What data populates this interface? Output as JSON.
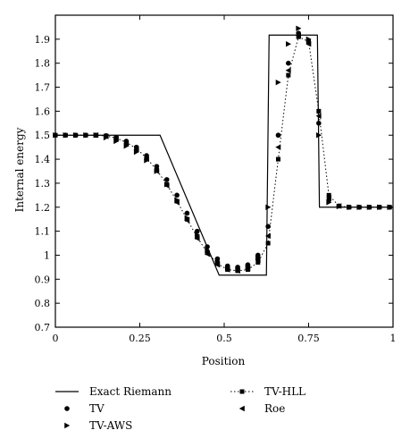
{
  "chart_data": {
    "type": "line",
    "title": "",
    "xlabel": "Position",
    "ylabel": "Internal energy",
    "xlim": [
      0,
      1
    ],
    "ylim": [
      0.7,
      2.0
    ],
    "grid": false,
    "legend_position": "below plot",
    "x_ticks": [
      {
        "value": 0,
        "label": "0"
      },
      {
        "value": 0.25,
        "label": "0.25"
      },
      {
        "value": 0.5,
        "label": "0.5"
      },
      {
        "value": 0.75,
        "label": "0.75"
      },
      {
        "value": 1,
        "label": "1"
      }
    ],
    "y_ticks": [
      {
        "value": 0.7,
        "label": "0.7"
      },
      {
        "value": 0.8,
        "label": "0.8"
      },
      {
        "value": 0.9,
        "label": "0.9"
      },
      {
        "value": 1.0,
        "label": "1"
      },
      {
        "value": 1.1,
        "label": "1.1"
      },
      {
        "value": 1.2,
        "label": "1.2"
      },
      {
        "value": 1.3,
        "label": "1.3"
      },
      {
        "value": 1.4,
        "label": "1.4"
      },
      {
        "value": 1.5,
        "label": "1.5"
      },
      {
        "value": 1.6,
        "label": "1.6"
      },
      {
        "value": 1.7,
        "label": "1.7"
      },
      {
        "value": 1.8,
        "label": "1.8"
      },
      {
        "value": 1.9,
        "label": "1.9"
      }
    ],
    "series": [
      {
        "name": "Exact Riemann",
        "style": "solid-line",
        "x": [
          0,
          0.31,
          0.485,
          0.625,
          0.633,
          0.776,
          0.782,
          1.0
        ],
        "y": [
          1.5,
          1.5,
          0.917,
          0.917,
          1.917,
          1.917,
          1.2,
          1.2
        ]
      },
      {
        "name": "TV",
        "style": "circle-marker",
        "x": [
          0,
          0.03,
          0.06,
          0.09,
          0.12,
          0.15,
          0.18,
          0.21,
          0.24,
          0.27,
          0.3,
          0.33,
          0.36,
          0.39,
          0.42,
          0.45,
          0.48,
          0.51,
          0.54,
          0.57,
          0.6,
          0.63,
          0.66,
          0.69,
          0.72,
          0.75,
          0.78,
          0.81,
          0.84,
          0.87,
          0.9,
          0.93,
          0.96,
          0.99
        ],
        "y": [
          1.5,
          1.5,
          1.5,
          1.5,
          1.5,
          1.498,
          1.49,
          1.475,
          1.45,
          1.415,
          1.37,
          1.315,
          1.25,
          1.175,
          1.1,
          1.035,
          0.985,
          0.955,
          0.95,
          0.96,
          1.0,
          1.12,
          1.5,
          1.8,
          1.925,
          1.885,
          1.55,
          1.23,
          1.205,
          1.2,
          1.2,
          1.2,
          1.2,
          1.2
        ]
      },
      {
        "name": "TV-HLL",
        "style": "square-dotted",
        "x": [
          0,
          0.03,
          0.06,
          0.09,
          0.12,
          0.15,
          0.18,
          0.21,
          0.24,
          0.27,
          0.3,
          0.33,
          0.36,
          0.39,
          0.42,
          0.45,
          0.48,
          0.51,
          0.54,
          0.57,
          0.6,
          0.63,
          0.66,
          0.69,
          0.72,
          0.75,
          0.78,
          0.81,
          0.84,
          0.87,
          0.9,
          0.93,
          0.96,
          0.99
        ],
        "y": [
          1.5,
          1.5,
          1.5,
          1.5,
          1.5,
          1.497,
          1.488,
          1.47,
          1.445,
          1.405,
          1.355,
          1.295,
          1.225,
          1.15,
          1.075,
          1.01,
          0.965,
          0.94,
          0.935,
          0.94,
          0.97,
          1.05,
          1.4,
          1.75,
          1.91,
          1.89,
          1.6,
          1.25,
          1.205,
          1.2,
          1.2,
          1.2,
          1.2,
          1.2
        ]
      },
      {
        "name": "TV-AWS",
        "style": "triangle-right-marker",
        "x": [
          0,
          0.03,
          0.06,
          0.09,
          0.12,
          0.15,
          0.18,
          0.21,
          0.24,
          0.27,
          0.3,
          0.33,
          0.36,
          0.39,
          0.42,
          0.45,
          0.48,
          0.51,
          0.54,
          0.57,
          0.6,
          0.63,
          0.66,
          0.69,
          0.72,
          0.75,
          0.78,
          0.81,
          0.84,
          0.87,
          0.9,
          0.93,
          0.96,
          0.99
        ],
        "y": [
          1.5,
          1.5,
          1.5,
          1.5,
          1.5,
          1.49,
          1.475,
          1.455,
          1.43,
          1.395,
          1.35,
          1.295,
          1.23,
          1.155,
          1.085,
          1.02,
          0.975,
          0.945,
          0.94,
          0.95,
          0.99,
          1.2,
          1.72,
          1.88,
          1.945,
          1.9,
          1.5,
          1.22,
          1.203,
          1.2,
          1.2,
          1.2,
          1.2,
          1.2
        ]
      },
      {
        "name": "Roe",
        "style": "triangle-left-marker",
        "x": [
          0.12,
          0.15,
          0.18,
          0.21,
          0.24,
          0.27,
          0.3,
          0.33,
          0.36,
          0.39,
          0.42,
          0.45,
          0.48,
          0.51,
          0.54,
          0.57,
          0.6,
          0.63,
          0.66,
          0.69,
          0.72,
          0.75,
          0.78,
          0.81,
          0.84
        ],
        "y": [
          1.5,
          1.495,
          1.485,
          1.465,
          1.44,
          1.4,
          1.35,
          1.29,
          1.22,
          1.145,
          1.07,
          1.005,
          0.96,
          0.94,
          0.935,
          0.945,
          0.98,
          1.08,
          1.45,
          1.77,
          1.915,
          1.88,
          1.58,
          1.24,
          1.205
        ]
      }
    ],
    "legend": [
      {
        "label": "Exact Riemann",
        "symbol": "line"
      },
      {
        "label": "TV-HLL",
        "symbol": "dotted-square"
      },
      {
        "label": "TV",
        "symbol": "circle"
      },
      {
        "label": "Roe",
        "symbol": "triangle-left"
      },
      {
        "label": "TV-AWS",
        "symbol": "triangle-right"
      }
    ]
  }
}
